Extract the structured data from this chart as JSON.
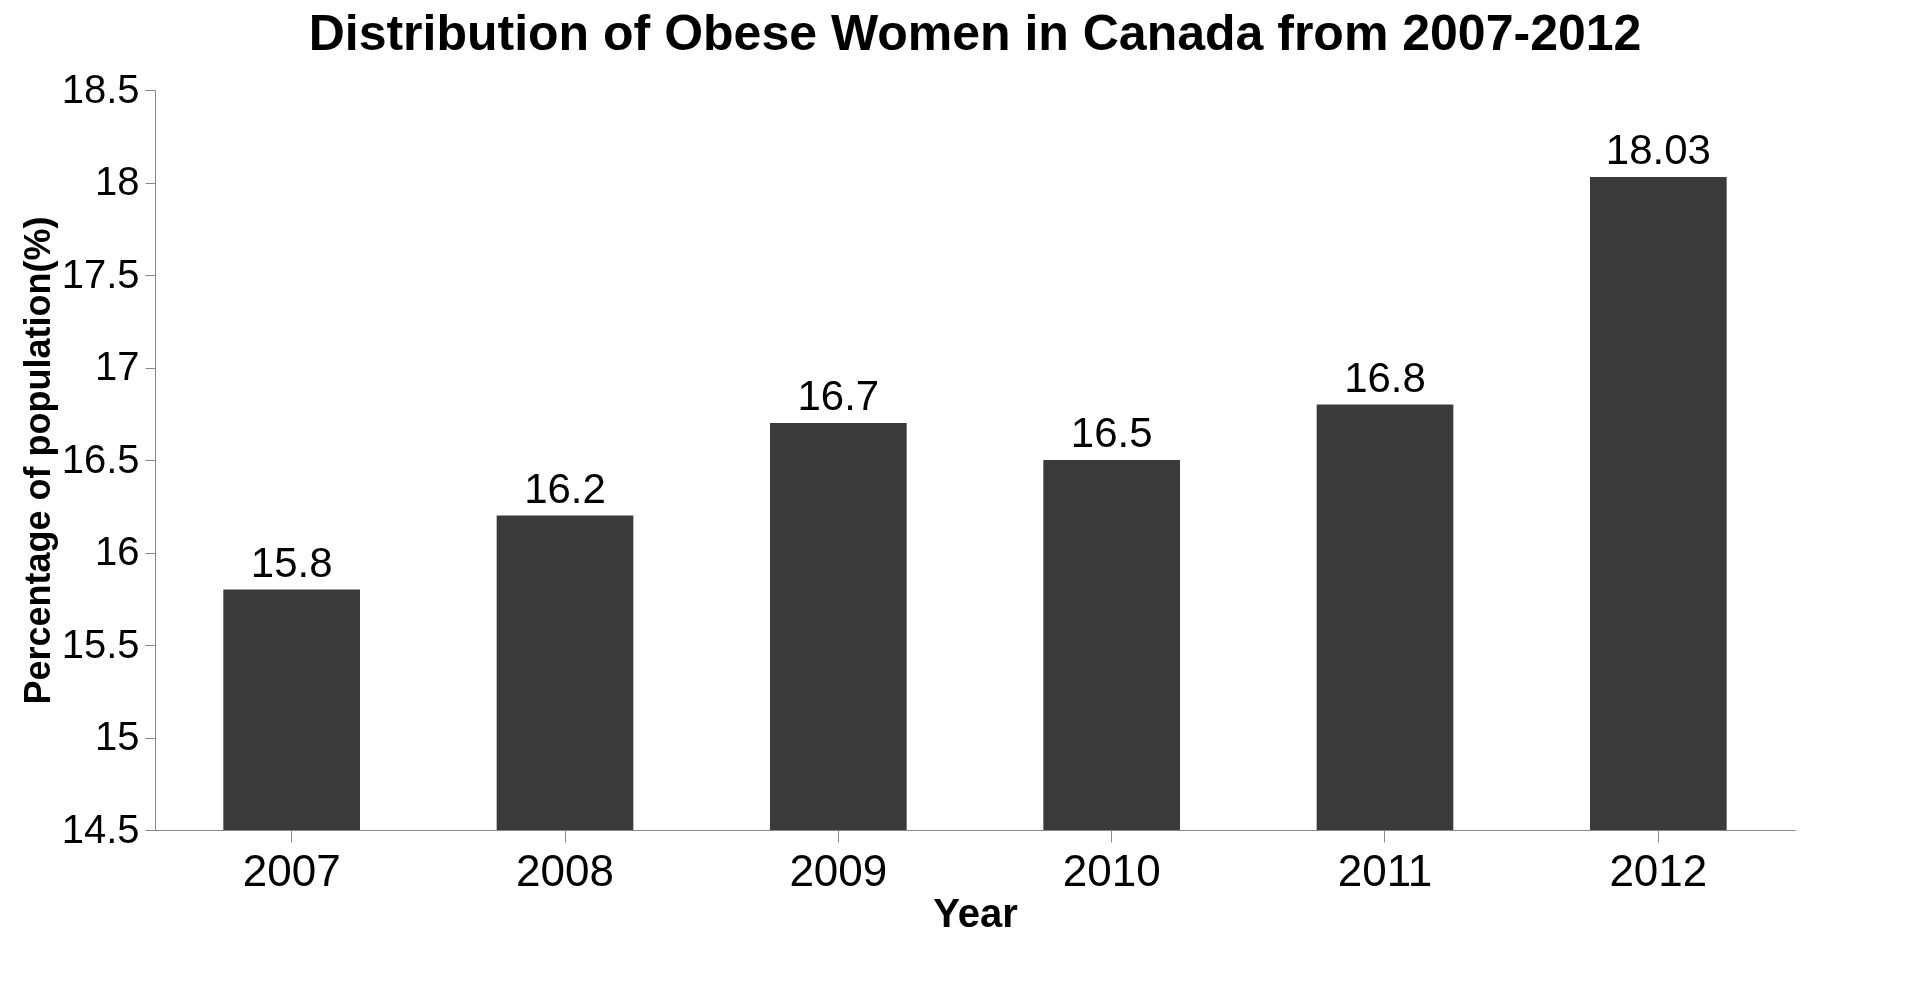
{
  "chart_data": {
    "type": "bar",
    "title": "Distribution of Obese  Women in Canada from 2007-2012",
    "xlabel": "Year",
    "ylabel": "Percentage of population(%)",
    "categories": [
      "2007",
      "2008",
      "2009",
      "2010",
      "2011",
      "2012"
    ],
    "values": [
      15.8,
      16.2,
      16.7,
      16.5,
      16.8,
      18.03
    ],
    "color": "#3a3a3a",
    "ylim": [
      14.5,
      18.5
    ],
    "yticks": [
      14.5,
      15,
      15.5,
      16,
      16.5,
      17,
      17.5,
      18,
      18.5
    ],
    "grid": false,
    "data_labels": true
  }
}
